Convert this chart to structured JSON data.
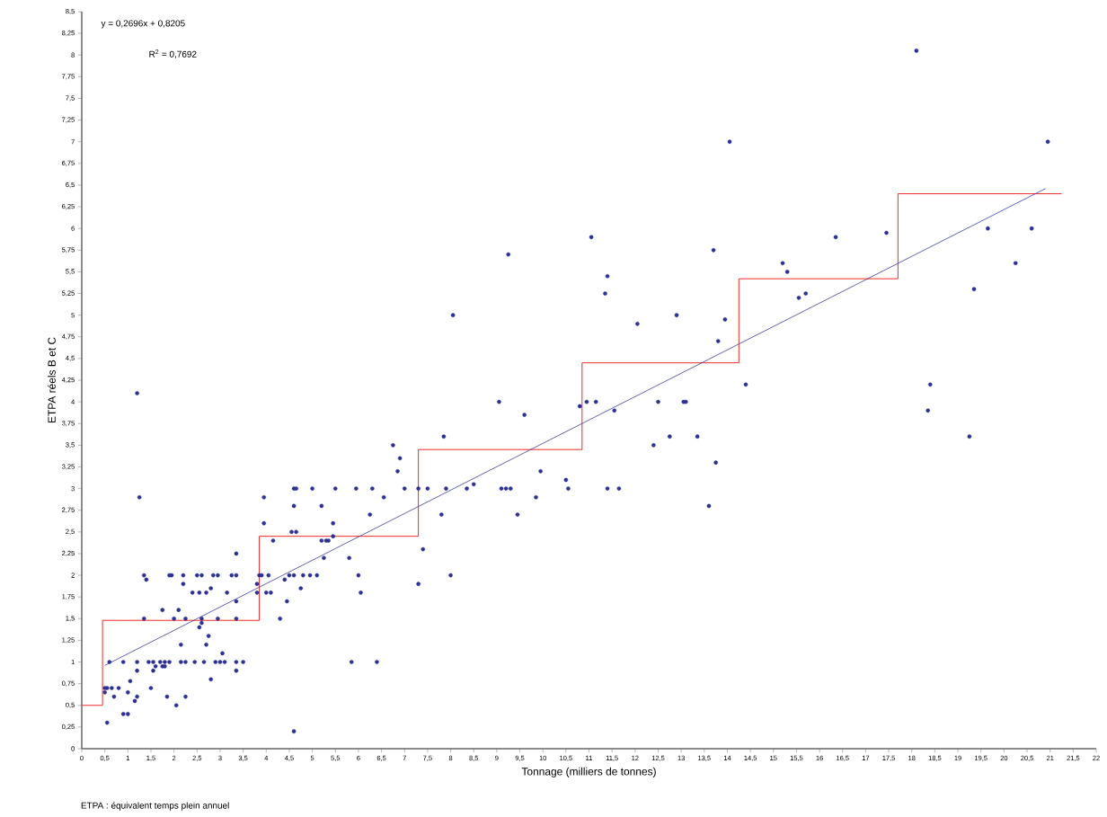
{
  "chart_data": {
    "type": "scatter",
    "xlabel": "Tonnage (milliers de tonnes)",
    "ylabel": "ETPA réels B et C",
    "annotations": [
      "y = 0,2696x + 0,8205",
      "R$^{2}$ = 0,7692",
      "ETPA : équivalent temps plein annuel"
    ],
    "xlim": [
      0,
      22
    ],
    "ylim": [
      0,
      8.5
    ],
    "xticks": [
      0,
      {
        "value": 0.5,
        "label": "0,5"
      },
      1,
      {
        "value": 1.5,
        "label": "1,5"
      },
      2,
      {
        "value": 2.5,
        "label": "2,5"
      },
      3,
      {
        "value": 3.5,
        "label": "3,5"
      },
      4,
      {
        "value": 4.5,
        "label": "4,5"
      },
      5,
      {
        "value": 5.5,
        "label": "5,5"
      },
      6,
      {
        "value": 6.5,
        "label": "6,5"
      },
      7,
      {
        "value": 7.5,
        "label": "7,5"
      },
      8,
      {
        "value": 8.5,
        "label": "8,5"
      },
      9,
      {
        "value": 9.5,
        "label": "9,5"
      },
      10,
      {
        "value": 10.5,
        "label": "10,5"
      },
      11,
      {
        "value": 11.5,
        "label": "11,5"
      },
      12,
      {
        "value": 12.5,
        "label": "12,5"
      },
      13,
      {
        "value": 13.5,
        "label": "13,5"
      },
      14,
      {
        "value": 14.5,
        "label": "14,5"
      },
      15,
      {
        "value": 15.5,
        "label": "15,5"
      },
      16,
      {
        "value": 16.5,
        "label": "16,5"
      },
      17,
      {
        "value": 17.5,
        "label": "17,5"
      },
      18,
      {
        "value": 18.5,
        "label": "18,5"
      },
      19,
      {
        "value": 19.5,
        "label": "19,5"
      },
      20,
      {
        "value": 20.5,
        "label": "20,5"
      },
      21,
      {
        "value": 21.5,
        "label": "21,5"
      },
      22
    ],
    "yticks": [
      0,
      {
        "value": 0.25,
        "label": "0,25"
      },
      {
        "value": 0.5,
        "label": "0,5"
      },
      {
        "value": 0.75,
        "label": "0,75"
      },
      1,
      {
        "value": 1.25,
        "label": "1,25"
      },
      {
        "value": 1.5,
        "label": "1,5"
      },
      {
        "value": 1.75,
        "label": "1,75"
      },
      2,
      {
        "value": 2.25,
        "label": "2,25"
      },
      {
        "value": 2.5,
        "label": "2,5"
      },
      {
        "value": 2.75,
        "label": "2,75"
      },
      3,
      {
        "value": 3.25,
        "label": "3,25"
      },
      {
        "value": 3.5,
        "label": "3,5"
      },
      {
        "value": 3.75,
        "label": "3,75"
      },
      4,
      {
        "value": 4.25,
        "label": "4,25"
      },
      {
        "value": 4.5,
        "label": "4,5"
      },
      {
        "value": 4.75,
        "label": "4,75"
      },
      5,
      {
        "value": 5.25,
        "label": "5,25"
      },
      {
        "value": 5.5,
        "label": "5,5"
      },
      {
        "value": 5.75,
        "label": "5,75"
      },
      6,
      {
        "value": 6.25,
        "label": "6,25"
      },
      {
        "value": 6.5,
        "label": "6,5"
      },
      {
        "value": 6.75,
        "label": "6,75"
      },
      7,
      {
        "value": 7.25,
        "label": "7,25"
      },
      {
        "value": 7.5,
        "label": "7,5"
      },
      {
        "value": 7.75,
        "label": "7,75"
      },
      8,
      {
        "value": 8.25,
        "label": "8,25"
      },
      {
        "value": 8.5,
        "label": "8,5"
      }
    ],
    "legend": false,
    "grid": false,
    "series": [
      {
        "marker": "circle",
        "color": "#2e3192",
        "x": [
          0.5,
          0.5,
          0.55,
          0.6,
          0.65,
          0.55,
          0.7,
          0.8,
          0.9,
          0.9,
          1.0,
          1.0,
          1.05,
          1.15,
          1.2,
          1.2,
          1.2,
          1.2,
          1.25,
          1.35,
          1.35,
          1.4,
          1.45,
          1.5,
          1.55,
          1.55,
          1.6,
          1.7,
          1.75,
          1.75,
          1.8,
          1.8,
          1.85,
          1.9,
          1.9,
          1.95,
          2.0,
          2.1,
          2.05,
          2.15,
          2.15,
          2.2,
          2.2,
          2.25,
          2.25,
          2.25,
          2.4,
          2.45,
          2.5,
          2.55,
          2.55,
          2.6,
          2.6,
          2.6,
          2.65,
          2.7,
          2.7,
          2.75,
          2.8,
          2.8,
          2.85,
          2.9,
          2.95,
          2.95,
          3.0,
          3.05,
          3.1,
          3.15,
          3.25,
          3.35,
          3.35,
          3.35,
          3.35,
          3.35,
          3.35,
          3.5,
          3.8,
          3.8,
          3.85,
          3.9,
          3.95,
          3.95,
          4.0,
          4.05,
          4.1,
          4.15,
          4.3,
          4.4,
          4.45,
          4.5,
          4.55,
          4.6,
          4.6,
          4.6,
          4.65,
          4.65,
          4.6,
          4.75,
          4.8,
          4.95,
          5.0,
          5.1,
          5.2,
          5.2,
          5.25,
          5.3,
          5.35,
          5.45,
          5.45,
          5.5,
          5.8,
          5.85,
          5.95,
          6.0,
          6.05,
          6.25,
          6.3,
          6.4,
          6.55,
          6.75,
          6.85,
          6.9,
          7.0,
          7.3,
          7.3,
          7.4,
          7.5,
          7.8,
          7.85,
          7.9,
          8.0,
          8.05,
          8.35,
          8.5,
          9.05,
          9.1,
          9.2,
          9.25,
          9.3,
          9.45,
          9.6,
          9.85,
          9.95,
          10.5,
          10.55,
          10.8,
          10.95,
          11.05,
          11.15,
          11.35,
          11.4,
          11.4,
          11.55,
          11.65,
          12.05,
          12.4,
          12.5,
          12.75,
          12.9,
          13.05,
          13.1,
          13.35,
          13.6,
          13.7,
          13.75,
          13.8,
          13.95,
          14.05,
          14.4,
          15.2,
          15.3,
          15.55,
          15.7,
          16.35,
          17.45,
          18.1,
          18.4,
          18.35,
          19.25,
          19.35,
          19.65,
          20.25,
          20.6,
          20.95
        ],
        "values": [
          0.65,
          0.7,
          0.7,
          1.0,
          0.7,
          0.3,
          0.6,
          0.7,
          1.0,
          0.4,
          0.4,
          0.65,
          0.78,
          0.55,
          0.6,
          0.9,
          1.0,
          4.1,
          2.9,
          1.5,
          2.0,
          1.95,
          1.0,
          0.7,
          0.9,
          1.0,
          0.95,
          1.0,
          0.95,
          1.6,
          1.0,
          0.95,
          0.6,
          2.0,
          1.0,
          2.0,
          1.5,
          1.6,
          0.5,
          1.2,
          1.0,
          1.9,
          2.0,
          1.5,
          1.0,
          0.6,
          1.8,
          1.0,
          2.0,
          1.4,
          1.8,
          1.45,
          1.5,
          2.0,
          1.0,
          1.2,
          1.8,
          1.3,
          0.8,
          1.85,
          2.0,
          1.0,
          2.0,
          1.5,
          1.0,
          1.1,
          1.0,
          1.8,
          2.0,
          2.0,
          2.25,
          1.7,
          1.5,
          1.0,
          0.9,
          1.0,
          1.9,
          1.8,
          2.0,
          2.0,
          2.6,
          2.9,
          1.8,
          2.0,
          1.8,
          2.4,
          1.5,
          1.95,
          1.7,
          2.0,
          2.5,
          2.8,
          3.0,
          2.0,
          3.0,
          2.5,
          0.2,
          1.85,
          2.0,
          2.0,
          3.0,
          2.0,
          2.8,
          2.4,
          2.2,
          2.4,
          2.4,
          2.6,
          2.45,
          3.0,
          2.2,
          1.0,
          3.0,
          2.0,
          1.8,
          2.7,
          3.0,
          1.0,
          2.9,
          3.5,
          3.2,
          3.35,
          3.0,
          3.0,
          1.9,
          2.3,
          3.0,
          2.7,
          3.6,
          3.0,
          2.0,
          5.0,
          3.0,
          3.05,
          4.0,
          3.0,
          3.0,
          5.7,
          3.0,
          2.7,
          3.85,
          2.9,
          3.2,
          3.1,
          3.0,
          3.95,
          4.0,
          5.9,
          4.0,
          5.25,
          5.45,
          3.0,
          3.9,
          3.0,
          4.9,
          3.5,
          4.0,
          3.6,
          5.0,
          4.0,
          4.0,
          3.6,
          2.8,
          5.75,
          3.3,
          4.7,
          4.95,
          7.0,
          4.2,
          5.6,
          5.5,
          5.2,
          5.25,
          5.9,
          5.95,
          8.05,
          4.2,
          3.9,
          3.6,
          5.3,
          6.0,
          5.6,
          6.0,
          7.0
        ]
      },
      {
        "type": "step",
        "marker": "none",
        "color": "#ee2a2a",
        "x": [
          0,
          0.45,
          3.85,
          7.3,
          10.85,
          14.25,
          17.7,
          21.25
        ],
        "values": [
          0.5,
          1.48,
          2.45,
          3.45,
          4.45,
          5.42,
          6.4,
          6.4
        ]
      },
      {
        "type": "line",
        "marker": "none",
        "color": "#3b3ba0",
        "x": [
          0.5,
          20.9
        ],
        "values": [
          0.96,
          6.46
        ]
      }
    ]
  }
}
